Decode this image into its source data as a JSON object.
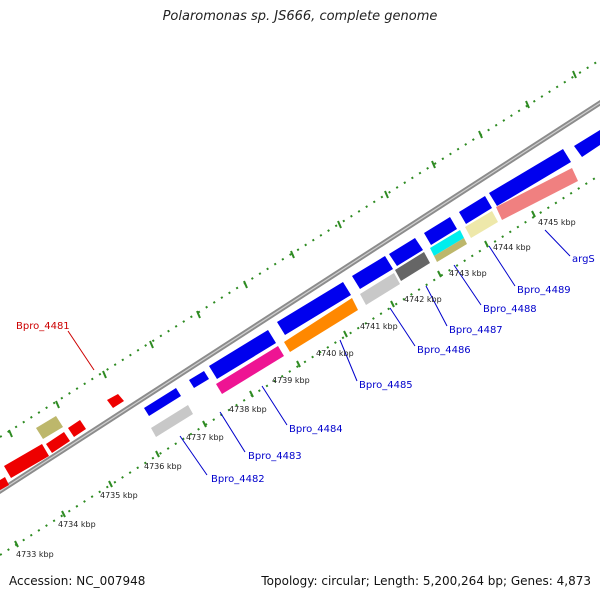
{
  "title": "Polaromonas sp. JS666, complete genome",
  "footer": {
    "accession": "Accession: NC_007948",
    "stats": "Topology: circular; Length: 5,200,264 bp; Genes: 4,873"
  },
  "colors": {
    "backbone": "#8c8c8c",
    "tick": "#2e8b22",
    "label_blue": "#0000cc",
    "label_red": "#cc0000"
  },
  "kbp_labels": [
    "4733 kbp",
    "4734 kbp",
    "4735 kbp",
    "4736 kbp",
    "4737 kbp",
    "4738 kbp",
    "4739 kbp",
    "4740 kbp",
    "4741 kbp",
    "4742 kbp",
    "4743 kbp",
    "4744 kbp",
    "4745 kbp"
  ],
  "gene_labels": [
    {
      "id": "label_4481",
      "text": "Bpro_4481",
      "color": "#cc0000"
    },
    {
      "id": "label_4482",
      "text": "Bpro_4482",
      "color": "#0000cc"
    },
    {
      "id": "label_4483",
      "text": "Bpro_4483",
      "color": "#0000cc"
    },
    {
      "id": "label_4484",
      "text": "Bpro_4484",
      "color": "#0000cc"
    },
    {
      "id": "label_4485",
      "text": "Bpro_4485",
      "color": "#0000cc"
    },
    {
      "id": "label_4486",
      "text": "Bpro_4486",
      "color": "#0000cc"
    },
    {
      "id": "label_4487",
      "text": "Bpro_4487",
      "color": "#0000cc"
    },
    {
      "id": "label_4488",
      "text": "Bpro_4488",
      "color": "#0000cc"
    },
    {
      "id": "label_4489",
      "text": "Bpro_4489",
      "color": "#0000cc"
    },
    {
      "id": "label_args",
      "text": "argS",
      "color": "#0000cc"
    }
  ]
}
